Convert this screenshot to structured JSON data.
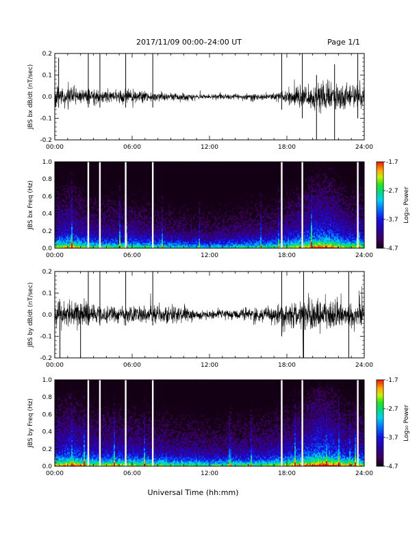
{
  "header": {
    "title": "2017/11/09  00:00–24:00 UT",
    "page": "Page 1/1"
  },
  "xlabel": "Universal Time (hh:mm)",
  "chart_data": [
    {
      "type": "line",
      "ylabel": "JBS bx dB/dt (nT/sec)",
      "x_ticks": [
        "00:00",
        "06:00",
        "12:00",
        "18:00",
        "24:00"
      ],
      "xlim": [
        0,
        24
      ],
      "ylim": [
        -0.2,
        0.2
      ],
      "y_ticks": [
        "0.2",
        "0.1",
        "0.0",
        "-0.1",
        "-0.2"
      ],
      "y_tick_values": [
        0.2,
        0.1,
        0.0,
        -0.1,
        -0.2
      ],
      "envelope": {
        "hours": [
          0,
          3,
          6,
          9,
          12,
          15,
          17,
          18,
          19,
          20,
          21,
          22,
          23,
          24
        ],
        "amplitude": [
          0.05,
          0.035,
          0.03,
          0.02,
          0.012,
          0.015,
          0.02,
          0.035,
          0.06,
          0.075,
          0.08,
          0.07,
          0.055,
          0.05
        ]
      },
      "spikes": [
        {
          "hour": 0.3,
          "top": 0.18,
          "bottom": -0.05
        },
        {
          "hour": 2.6,
          "top": 0.2,
          "bottom": -0.05
        },
        {
          "hour": 3.5,
          "top": 0.2,
          "bottom": -0.05
        },
        {
          "hour": 5.5,
          "top": 0.2,
          "bottom": -0.05
        },
        {
          "hour": 7.6,
          "top": 0.2,
          "bottom": -0.05
        },
        {
          "hour": 17.6,
          "top": 0.2,
          "bottom": -0.06
        },
        {
          "hour": 19.2,
          "top": 0.2,
          "bottom": -0.1
        },
        {
          "hour": 20.3,
          "top": 0.1,
          "bottom": -0.2
        },
        {
          "hour": 21.7,
          "top": 0.15,
          "bottom": -0.2
        },
        {
          "hour": 23.5,
          "top": 0.2,
          "bottom": -0.1
        }
      ]
    },
    {
      "type": "heatmap",
      "ylabel": "JBS bx Freq (Hz)",
      "x_ticks": [
        "00:00",
        "06:00",
        "12:00",
        "18:00",
        "24:00"
      ],
      "xlim": [
        0,
        24
      ],
      "ylim": [
        0,
        1.0
      ],
      "y_ticks": [
        "1.0",
        "0.8",
        "0.6",
        "0.4",
        "0.2",
        "0.0"
      ],
      "y_tick_values": [
        1.0,
        0.8,
        0.6,
        0.4,
        0.2,
        0.0
      ],
      "colorbar": {
        "label": "Log₁₀ Power",
        "ticks": [
          "-1.7",
          "-2.7",
          "-3.7",
          "-4.7"
        ],
        "tick_values": [
          -1.7,
          -2.7,
          -3.7,
          -4.7
        ],
        "range": [
          -4.7,
          -1.7
        ]
      },
      "data_gaps_hours": [
        2.6,
        3.5,
        5.5,
        7.6,
        17.6,
        19.2,
        23.5
      ],
      "activity": {
        "hours": [
          0,
          1.2,
          3,
          6,
          9,
          12,
          15,
          16.5,
          18,
          19.5,
          20.5,
          21.5,
          22.5,
          24
        ],
        "level": [
          0.55,
          0.6,
          0.45,
          0.45,
          0.35,
          0.3,
          0.38,
          0.4,
          0.5,
          0.62,
          0.75,
          0.7,
          0.55,
          0.5
        ]
      }
    },
    {
      "type": "line",
      "ylabel": "JBS by dB/dt (nT/sec)",
      "x_ticks": [
        "00:00",
        "06:00",
        "12:00",
        "18:00",
        "24:00"
      ],
      "xlim": [
        0,
        24
      ],
      "ylim": [
        -0.2,
        0.2
      ],
      "y_ticks": [
        "0.2",
        "0.1",
        "0.0",
        "-0.1",
        "-0.2"
      ],
      "y_tick_values": [
        0.2,
        0.1,
        0.0,
        -0.1,
        -0.2
      ],
      "envelope": {
        "hours": [
          0,
          2,
          4,
          6,
          8,
          10,
          12,
          14,
          16,
          17,
          18,
          19,
          20,
          21,
          22,
          23,
          24
        ],
        "amplitude": [
          0.06,
          0.06,
          0.045,
          0.04,
          0.045,
          0.035,
          0.02,
          0.03,
          0.035,
          0.04,
          0.06,
          0.08,
          0.085,
          0.08,
          0.075,
          0.06,
          0.055
        ]
      },
      "spikes": [
        {
          "hour": 0.4,
          "top": 0.06,
          "bottom": -0.2
        },
        {
          "hour": 2.0,
          "top": 0.05,
          "bottom": -0.2
        },
        {
          "hour": 2.6,
          "top": 0.2,
          "bottom": -0.05
        },
        {
          "hour": 3.5,
          "top": 0.2,
          "bottom": -0.05
        },
        {
          "hour": 5.5,
          "top": 0.2,
          "bottom": -0.05
        },
        {
          "hour": 7.6,
          "top": 0.2,
          "bottom": -0.05
        },
        {
          "hour": 17.6,
          "top": 0.2,
          "bottom": -0.1
        },
        {
          "hour": 19.3,
          "top": 0.2,
          "bottom": -0.2
        },
        {
          "hour": 22.8,
          "top": 0.2,
          "bottom": -0.2
        }
      ]
    },
    {
      "type": "heatmap",
      "ylabel": "JBS by Freq (Hz)",
      "x_ticks": [
        "00:00",
        "06:00",
        "12:00",
        "18:00",
        "24:00"
      ],
      "xlim": [
        0,
        24
      ],
      "ylim": [
        0,
        1.0
      ],
      "y_ticks": [
        "1.0",
        "0.8",
        "0.6",
        "0.4",
        "0.2",
        "0.0"
      ],
      "y_tick_values": [
        1.0,
        0.8,
        0.6,
        0.4,
        0.2,
        0.0
      ],
      "colorbar": {
        "label": "Log₁₀ Power",
        "ticks": [
          "-1.7",
          "-2.7",
          "-3.7",
          "-4.7"
        ],
        "tick_values": [
          -1.7,
          -2.7,
          -3.7,
          -4.7
        ],
        "range": [
          -4.7,
          -1.7
        ]
      },
      "data_gaps_hours": [
        2.6,
        3.5,
        5.5,
        7.6,
        17.6,
        19.2,
        23.5
      ],
      "activity": {
        "hours": [
          0,
          1.2,
          3,
          5,
          7,
          9,
          12,
          15,
          16.5,
          18,
          19.5,
          20.5,
          21.5,
          22.5,
          24
        ],
        "level": [
          0.6,
          0.68,
          0.55,
          0.55,
          0.5,
          0.45,
          0.4,
          0.45,
          0.48,
          0.55,
          0.7,
          0.8,
          0.75,
          0.6,
          0.55
        ]
      }
    }
  ]
}
